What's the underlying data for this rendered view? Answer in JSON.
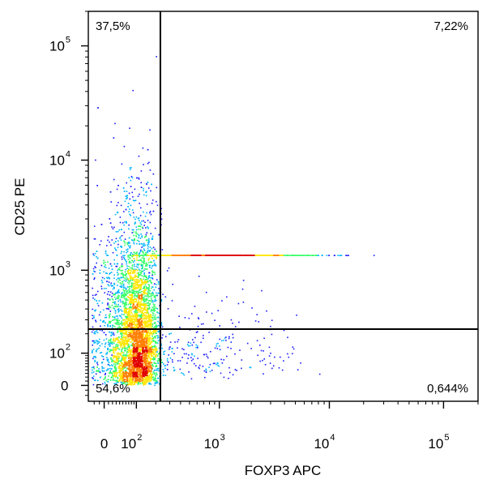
{
  "chart_data": {
    "type": "scatter",
    "subtype": "flow-cytometry density dot plot",
    "xlabel": "FOXP3 APC",
    "ylabel": "CD25 PE",
    "x_scale": "biexponential",
    "y_scale": "biexponential",
    "xlim": [
      -30,
      200000
    ],
    "ylim": [
      -30,
      200000
    ],
    "x_ticks": [
      {
        "value": 0,
        "base": "0",
        "exp": ""
      },
      {
        "value": 100,
        "base": "10",
        "exp": "2"
      },
      {
        "value": 1000,
        "base": "10",
        "exp": "3"
      },
      {
        "value": 10000,
        "base": "10",
        "exp": "4"
      },
      {
        "value": 100000,
        "base": "10",
        "exp": "5"
      }
    ],
    "y_ticks": [
      {
        "value": 0,
        "base": "0",
        "exp": ""
      },
      {
        "value": 100,
        "base": "10",
        "exp": "2"
      },
      {
        "value": 1000,
        "base": "10",
        "exp": "3"
      },
      {
        "value": 10000,
        "base": "10",
        "exp": "4"
      },
      {
        "value": 100000,
        "base": "10",
        "exp": "5"
      }
    ],
    "gates": {
      "x": 230,
      "y": 230
    },
    "quadrants": {
      "top_left": "37,5%",
      "top_right": "7,22%",
      "bottom_left": "54,6%",
      "bottom_right": "0,644%"
    },
    "populations": [
      {
        "n": 5200,
        "x_center": 95,
        "x_spread": 55,
        "y_center": 180,
        "y_spread": 0.62,
        "y_mode": "log"
      },
      {
        "n": 1100,
        "x_center": 1000,
        "x_spread": 0.42,
        "y_center": 1400,
        "y_spread": 0.38,
        "x_mode": "log",
        "corr": 0.7
      },
      {
        "n": 260,
        "x_center": 700,
        "x_spread": 0.45,
        "y_center": 120,
        "y_spread": 0.35,
        "x_mode": "log",
        "y_mode": "log"
      }
    ],
    "density_colors": [
      "#1a1aff",
      "#00b4ff",
      "#33ff66",
      "#ffe600",
      "#ff7f00",
      "#e00000"
    ],
    "grid": false,
    "legend": "none"
  }
}
